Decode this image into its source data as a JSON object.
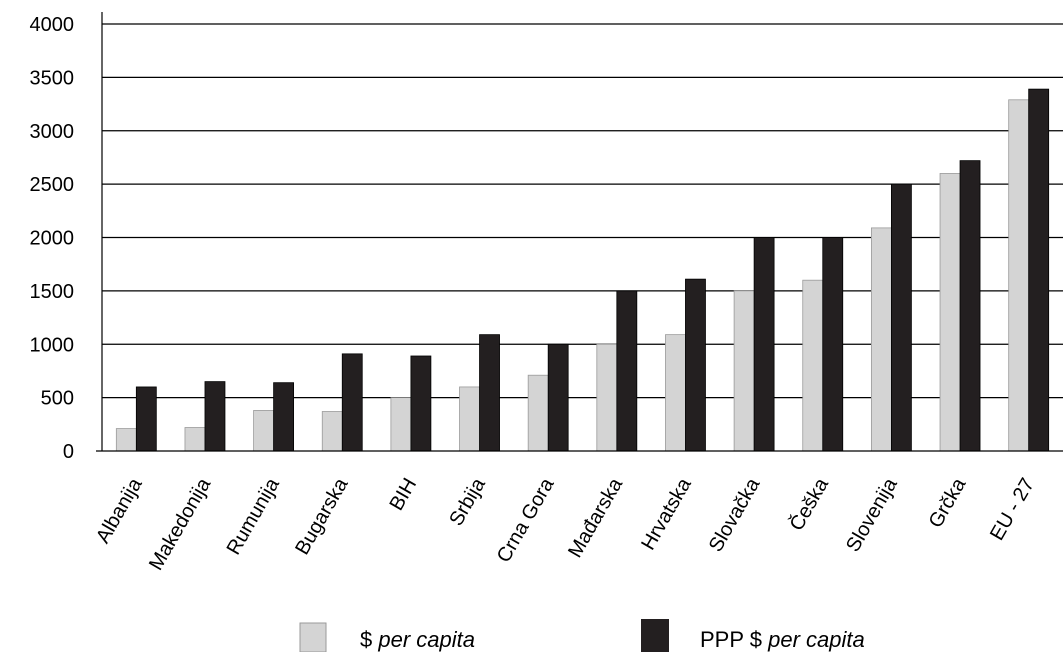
{
  "chart_data": {
    "type": "bar",
    "title": "",
    "xlabel": "",
    "ylabel": "",
    "ylim": [
      0,
      4000
    ],
    "yticks": [
      0,
      500,
      1000,
      1500,
      2000,
      2500,
      3000,
      3500,
      4000
    ],
    "grid": "horizontal",
    "legend_position": "bottom",
    "categories": [
      "Albanija",
      "Makedonija",
      "Rumunija",
      "Bugarska",
      "BIH",
      "Srbija",
      "Crna Gora",
      "Mađarska",
      "Hrvatska",
      "Slovačka",
      "Češka",
      "Slovenija",
      "Grčka",
      "EU - 27"
    ],
    "series": [
      {
        "legend_prefix": "$ ",
        "legend_italic": "per capita",
        "color": "#d4d4d4",
        "values": [
          210,
          220,
          380,
          370,
          500,
          600,
          710,
          1000,
          1090,
          1500,
          1600,
          2090,
          2600,
          3290
        ]
      },
      {
        "legend_prefix": "PPP $ ",
        "legend_italic": "per capita",
        "color": "#231f20",
        "values": [
          600,
          650,
          640,
          910,
          890,
          1090,
          1000,
          1500,
          1610,
          2000,
          2000,
          2500,
          2720,
          3390
        ]
      }
    ]
  }
}
